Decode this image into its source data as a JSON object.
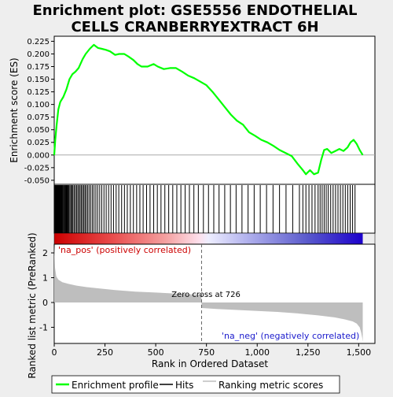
{
  "title_line1": "Enrichment plot: GSE5556 ENDOTHELIAL",
  "title_line2": "CELLS CRANBERRYEXTRACT 6H",
  "colors": {
    "enrichment": "#00ff00",
    "hits": "#000000",
    "ranking": "#bebebe",
    "zero_line": "#a9a9a9",
    "pos_label": "#cc0000",
    "neg_label": "#1a1acc"
  },
  "top_panel": {
    "ylabel": "Enrichment score (ES)",
    "yticks": [
      "0.225",
      "0.200",
      "0.175",
      "0.150",
      "0.125",
      "0.100",
      "0.075",
      "0.050",
      "0.025",
      "0.000",
      "-0.025",
      "-0.050"
    ]
  },
  "bottom_panel": {
    "ylabel": "Ranked list metric (PreRanked)",
    "yticks": [
      "2",
      "1",
      "0",
      "-1"
    ],
    "pos_label": "'na_pos' (positively correlated)",
    "neg_label": "'na_neg' (negatively correlated)",
    "zero_cross_label": "Zero cross at 726"
  },
  "xaxis": {
    "label": "Rank in Ordered Dataset",
    "ticks": [
      "0",
      "250",
      "500",
      "750",
      "1,000",
      "1,250",
      "1,500"
    ]
  },
  "legend": {
    "enrichment": "Enrichment profile",
    "hits": "Hits",
    "ranking": "Ranking metric scores"
  },
  "chart_data": {
    "type": "line",
    "n_genes": 1520,
    "zero_cross": 726,
    "xlim": [
      0,
      1580
    ],
    "es_ylim": [
      -0.058,
      0.235
    ],
    "metric_ylim": [
      -1.65,
      2.35
    ],
    "enrichment_profile": [
      [
        0,
        0.0
      ],
      [
        5,
        0.03
      ],
      [
        12,
        0.06
      ],
      [
        20,
        0.09
      ],
      [
        30,
        0.105
      ],
      [
        45,
        0.115
      ],
      [
        60,
        0.13
      ],
      [
        75,
        0.15
      ],
      [
        90,
        0.16
      ],
      [
        105,
        0.165
      ],
      [
        120,
        0.172
      ],
      [
        140,
        0.19
      ],
      [
        155,
        0.2
      ],
      [
        175,
        0.21
      ],
      [
        195,
        0.218
      ],
      [
        215,
        0.212
      ],
      [
        235,
        0.21
      ],
      [
        255,
        0.208
      ],
      [
        275,
        0.205
      ],
      [
        300,
        0.198
      ],
      [
        320,
        0.2
      ],
      [
        345,
        0.2
      ],
      [
        365,
        0.195
      ],
      [
        390,
        0.188
      ],
      [
        410,
        0.18
      ],
      [
        430,
        0.175
      ],
      [
        460,
        0.175
      ],
      [
        490,
        0.18
      ],
      [
        510,
        0.175
      ],
      [
        540,
        0.17
      ],
      [
        570,
        0.172
      ],
      [
        600,
        0.172
      ],
      [
        630,
        0.165
      ],
      [
        660,
        0.157
      ],
      [
        690,
        0.152
      ],
      [
        720,
        0.145
      ],
      [
        750,
        0.138
      ],
      [
        780,
        0.125
      ],
      [
        810,
        0.11
      ],
      [
        840,
        0.095
      ],
      [
        870,
        0.08
      ],
      [
        900,
        0.068
      ],
      [
        930,
        0.06
      ],
      [
        960,
        0.045
      ],
      [
        990,
        0.038
      ],
      [
        1020,
        0.03
      ],
      [
        1050,
        0.025
      ],
      [
        1080,
        0.018
      ],
      [
        1110,
        0.01
      ],
      [
        1140,
        0.004
      ],
      [
        1170,
        -0.002
      ],
      [
        1200,
        -0.018
      ],
      [
        1225,
        -0.03
      ],
      [
        1240,
        -0.038
      ],
      [
        1260,
        -0.03
      ],
      [
        1280,
        -0.038
      ],
      [
        1300,
        -0.035
      ],
      [
        1315,
        -0.01
      ],
      [
        1330,
        0.01
      ],
      [
        1345,
        0.012
      ],
      [
        1365,
        0.004
      ],
      [
        1385,
        0.008
      ],
      [
        1405,
        0.012
      ],
      [
        1425,
        0.008
      ],
      [
        1445,
        0.015
      ],
      [
        1460,
        0.025
      ],
      [
        1475,
        0.03
      ],
      [
        1490,
        0.022
      ],
      [
        1505,
        0.01
      ],
      [
        1520,
        0.0
      ]
    ],
    "hit_ranks": [
      2,
      4,
      6,
      8,
      10,
      12,
      14,
      16,
      18,
      20,
      22,
      24,
      26,
      28,
      30,
      32,
      35,
      38,
      41,
      44,
      48,
      52,
      56,
      60,
      64,
      68,
      72,
      77,
      82,
      87,
      92,
      98,
      104,
      110,
      116,
      122,
      128,
      134,
      140,
      146,
      152,
      158,
      165,
      172,
      180,
      188,
      196,
      205,
      214,
      224,
      234,
      245,
      256,
      268,
      280,
      292,
      305,
      318,
      332,
      346,
      360,
      375,
      390,
      406,
      422,
      438,
      455,
      472,
      490,
      508,
      526,
      545,
      564,
      584,
      604,
      624,
      645,
      666,
      688,
      710,
      735,
      760,
      786,
      812,
      840,
      868,
      896,
      925,
      955,
      985,
      1015,
      1046,
      1078,
      1110,
      1142,
      1175,
      1208,
      1225,
      1240,
      1255,
      1270,
      1285,
      1300,
      1310,
      1320,
      1330,
      1340,
      1350,
      1362,
      1374,
      1386,
      1398,
      1410,
      1422,
      1434,
      1446,
      1458,
      1470,
      1482
    ],
    "metric_profile": [
      [
        0,
        2.3
      ],
      [
        4,
        1.4
      ],
      [
        10,
        1.05
      ],
      [
        20,
        0.92
      ],
      [
        40,
        0.82
      ],
      [
        70,
        0.75
      ],
      [
        110,
        0.68
      ],
      [
        160,
        0.62
      ],
      [
        220,
        0.57
      ],
      [
        300,
        0.5
      ],
      [
        400,
        0.44
      ],
      [
        500,
        0.4
      ],
      [
        600,
        0.36
      ],
      [
        700,
        0.32
      ],
      [
        725,
        0.3
      ],
      [
        726,
        -0.22
      ],
      [
        800,
        -0.26
      ],
      [
        900,
        -0.3
      ],
      [
        1000,
        -0.34
      ],
      [
        1100,
        -0.38
      ],
      [
        1200,
        -0.44
      ],
      [
        1300,
        -0.52
      ],
      [
        1380,
        -0.6
      ],
      [
        1430,
        -0.68
      ],
      [
        1470,
        -0.76
      ],
      [
        1490,
        -0.85
      ],
      [
        1505,
        -1.0
      ],
      [
        1512,
        -1.2
      ],
      [
        1518,
        -1.45
      ],
      [
        1520,
        -1.6
      ]
    ]
  }
}
